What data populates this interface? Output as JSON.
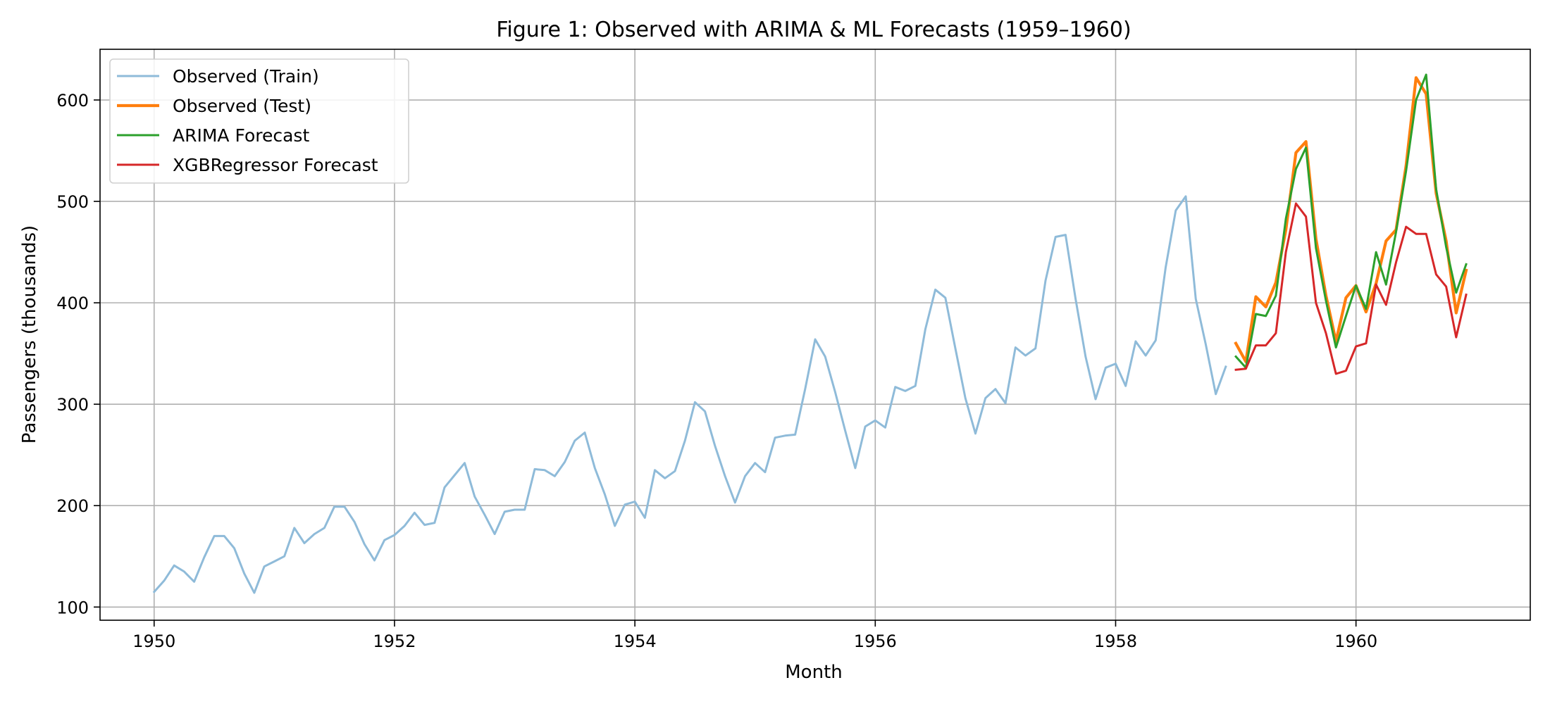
{
  "chart_data": {
    "type": "line",
    "title": "Figure 1: Observed with ARIMA & ML Forecasts (1959–1960)",
    "xlabel": "Month",
    "ylabel": "Passengers (thousands)",
    "xlim": [
      1949.55,
      1961.45
    ],
    "ylim": [
      87,
      650
    ],
    "xticks": [
      1950,
      1952,
      1954,
      1956,
      1958,
      1960
    ],
    "yticks": [
      100,
      200,
      300,
      400,
      500,
      600
    ],
    "grid": true,
    "legend_position": "top-left",
    "x_start": {
      "year": 1950,
      "month": 1
    },
    "series": [
      {
        "name": "Observed (Train)",
        "color": "#8fbbd9",
        "start_month_index": 0,
        "values": [
          115,
          126,
          141,
          135,
          125,
          149,
          170,
          170,
          158,
          133,
          114,
          140,
          145,
          150,
          178,
          163,
          172,
          178,
          199,
          199,
          184,
          162,
          146,
          166,
          171,
          180,
          193,
          181,
          183,
          218,
          230,
          242,
          209,
          191,
          172,
          194,
          196,
          196,
          236,
          235,
          229,
          243,
          264,
          272,
          237,
          211,
          180,
          201,
          204,
          188,
          235,
          227,
          234,
          264,
          302,
          293,
          259,
          229,
          203,
          229,
          242,
          233,
          267,
          269,
          270,
          315,
          364,
          347,
          312,
          274,
          237,
          278,
          284,
          277,
          317,
          313,
          318,
          374,
          413,
          405,
          355,
          306,
          271,
          306,
          315,
          301,
          356,
          348,
          355,
          422,
          465,
          467,
          404,
          347,
          305,
          336,
          340,
          318,
          362,
          348,
          363,
          435,
          491,
          505,
          404,
          359,
          310,
          337
        ]
      },
      {
        "name": "Observed (Test)",
        "color": "#ff7f0e",
        "start_month_index": 108,
        "values": [
          360,
          342,
          406,
          396,
          420,
          472,
          548,
          559,
          463,
          407,
          362,
          405,
          417,
          391,
          419,
          461,
          472,
          535,
          622,
          606,
          508,
          461,
          390,
          432
        ]
      },
      {
        "name": "ARIMA Forecast",
        "color": "#2ca02c",
        "start_month_index": 108,
        "values": [
          347,
          336,
          389,
          387,
          407,
          483,
          532,
          553,
          454,
          402,
          356,
          387,
          417,
          394,
          450,
          418,
          470,
          530,
          600,
          625,
          512,
          455,
          410,
          438
        ]
      },
      {
        "name": "XGBRegressor Forecast",
        "color": "#d62728",
        "start_month_index": 108,
        "values": [
          334,
          335,
          358,
          358,
          370,
          450,
          498,
          485,
          400,
          370,
          330,
          333,
          357,
          360,
          418,
          398,
          440,
          475,
          468,
          468,
          428,
          416,
          366,
          408
        ]
      }
    ]
  }
}
